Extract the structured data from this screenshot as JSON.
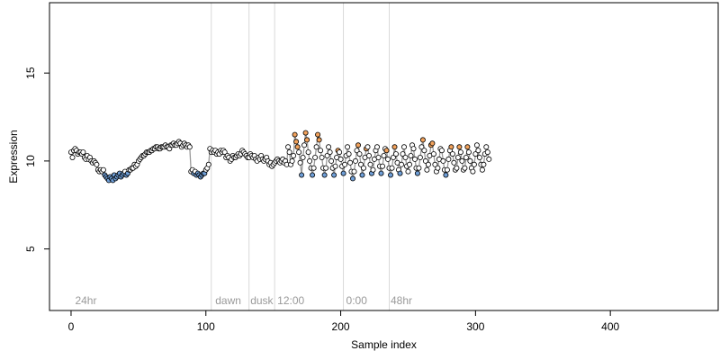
{
  "chart_data": {
    "type": "scatter",
    "xlabel": "Sample index",
    "ylabel": "Expression",
    "xlim": [
      -16,
      480
    ],
    "ylim": [
      1.5,
      19
    ],
    "xticks": [
      0,
      100,
      200,
      300,
      400
    ],
    "yticks": [
      5,
      10,
      15
    ],
    "grid": false,
    "vlines": [
      104,
      132,
      151,
      202,
      236
    ],
    "region_labels": [
      {
        "x": 3,
        "label": "24hr"
      },
      {
        "x": 107,
        "label": "dawn"
      },
      {
        "x": 133,
        "label": "dusk"
      },
      {
        "x": 153,
        "label": "12:00"
      },
      {
        "x": 204,
        "label": "0:00"
      },
      {
        "x": 237,
        "label": "48hr"
      }
    ],
    "colors": {
      "neutral_fill": "#ffffff",
      "low_fill": "#6f9fd8",
      "high_fill": "#f2a25c",
      "stroke": "#000000",
      "line": "#9a9a9a",
      "vline": "#d9d9d9",
      "region_label": "#9a9a9a"
    },
    "series": [
      {
        "x_start": 0,
        "values": [
          10.5,
          10.2,
          10.6,
          10.7,
          10.6,
          10.4,
          10.5,
          10.5,
          10.4,
          10.5,
          10.2,
          10.1,
          10.3,
          10.1,
          10.2,
          10.0,
          9.9,
          10.0,
          9.9,
          9.8,
          9.5,
          9.4,
          9.5,
          9.4,
          9.5,
          9.2,
          9.1,
          9.0,
          8.9,
          9.1,
          9.0,
          8.9,
          9.2,
          9.0,
          9.1,
          9.2,
          9.3,
          9.1,
          9.2,
          9.3,
          9.4,
          9.2,
          9.3,
          9.5,
          9.5,
          9.6,
          9.6,
          9.8,
          9.7,
          9.8,
          10.0,
          10.1,
          10.2,
          10.3,
          10.3,
          10.4,
          10.5,
          10.5,
          10.5,
          10.6,
          10.6,
          10.7,
          10.7,
          10.8,
          10.8,
          10.7,
          10.7,
          10.8,
          10.8,
          10.8,
          10.9,
          10.8,
          10.8,
          10.7,
          10.9,
          10.9,
          11.0,
          10.9,
          10.9,
          11.0,
          11.1,
          11.0,
          10.8,
          10.9,
          11.0,
          10.9,
          10.8,
          10.9,
          10.8,
          9.4,
          9.5,
          9.3,
          9.4,
          9.2,
          9.3,
          9.2,
          9.1,
          9.2,
          9.3,
          9.3,
          9.5,
          9.6,
          9.8,
          10.7,
          10.5,
          10.6,
          10.5,
          10.6,
          10.4,
          10.5,
          10.4,
          10.6,
          10.5,
          10.6,
          10.5,
          10.2,
          10.3,
          10.2,
          10.0,
          10.1,
          10.3,
          10.2,
          10.2,
          10.3,
          10.4,
          10.3,
          10.4,
          10.6,
          10.5,
          10.4,
          10.3,
          10.2,
          10.2,
          10.4,
          10.3,
          10.2,
          10.3,
          10.1,
          10.0,
          10.2,
          10.1,
          10.3,
          10.1,
          10.0,
          10.1,
          10.2,
          10.0,
          9.8,
          9.9,
          9.7,
          9.8,
          9.9,
          10.0,
          10.1,
          10.0,
          9.9,
          10.0,
          10.1,
          9.9,
          10.0,
          9.8,
          10.8,
          10.5,
          9.8,
          10.0,
          10.3,
          11.5,
          11.1,
          10.8,
          10.5,
          9.9,
          9.2,
          10.2,
          10.9,
          11.6,
          11.2,
          10.5,
          10.0,
          9.6,
          9.2,
          9.6,
          10.2,
          10.8,
          11.5,
          11.2,
          10.6,
          10.2,
          9.6,
          9.2,
          9.6,
          10.3,
          10.8,
          10.5,
          10.0,
          9.6,
          9.2,
          9.7,
          10.2,
          10.6,
          10.5,
          10.1,
          9.7,
          9.3,
          9.8,
          10.3,
          10.8,
          10.4,
          9.9,
          9.4,
          9.0,
          9.4,
          10.0,
          10.6,
          10.9,
          10.4,
          9.8,
          9.2,
          9.6,
          10.2,
          10.7,
          10.8,
          10.3,
          9.8,
          9.3,
          9.5,
          10.1,
          10.6,
          10.8,
          10.2,
          9.7,
          9.3,
          9.7,
          10.3,
          10.7,
          10.6,
          10.1,
          9.6,
          9.2,
          9.6,
          10.2,
          10.8,
          10.4,
          9.9,
          9.5,
          9.3,
          9.8,
          10.4,
          10.8,
          10.2,
          9.7,
          9.4,
          9.8,
          10.3,
          10.9,
          10.7,
          10.1,
          9.6,
          9.3,
          9.6,
          10.2,
          10.8,
          11.2,
          10.6,
          10.0,
          9.5,
          9.8,
          10.3,
          10.9,
          11.0,
          10.4,
          9.8,
          9.4,
          9.6,
          10.1,
          10.7,
          10.6,
          10.0,
          9.5,
          9.2,
          9.5,
          10.1,
          10.6,
          10.8,
          10.4,
          9.9,
          9.5,
          9.6,
          10.2,
          10.8,
          10.5,
          10.0,
          9.5,
          9.6,
          10.2,
          10.8,
          10.5,
          10.0,
          9.6,
          9.4,
          9.8,
          10.4,
          10.9,
          10.6,
          10.2,
          9.8,
          9.5,
          9.8,
          10.4,
          10.8,
          10.5,
          10.1
        ]
      }
    ]
  }
}
